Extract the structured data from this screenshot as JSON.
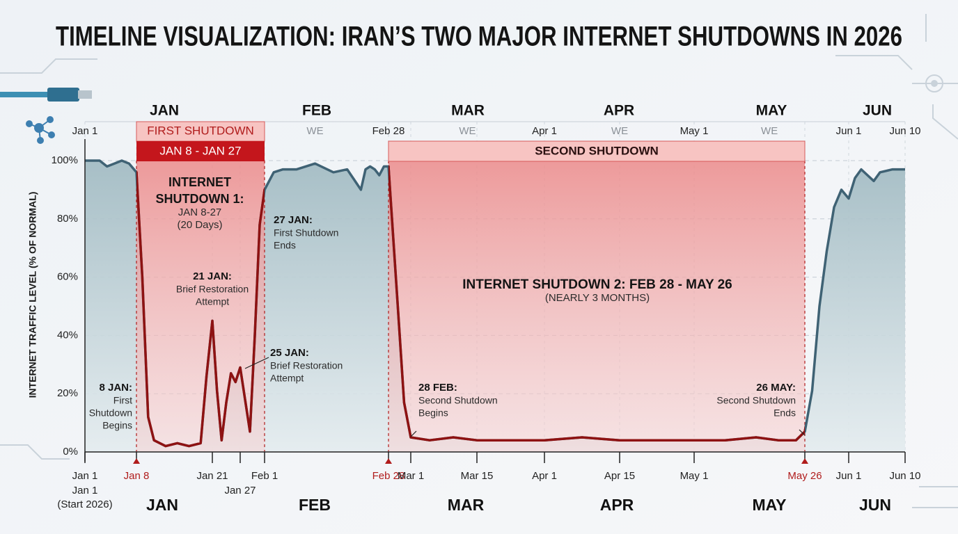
{
  "chart_data": {
    "type": "area-line",
    "title": "TIMELINE VISUALIZATION: IRAN’S TWO MAJOR INTERNET SHUTDOWNS IN 2026",
    "y_label": "INTERNET TRAFFIC LEVEL (% OF NORMAL)",
    "ylim": [
      0,
      100
    ],
    "yticks": [
      {
        "value": 0,
        "label": "0%"
      },
      {
        "value": 20,
        "label": "20%"
      },
      {
        "value": 40,
        "label": "40%"
      },
      {
        "value": 60,
        "label": "60%"
      },
      {
        "value": 80,
        "label": "80%"
      },
      {
        "value": 100,
        "label": "100%"
      }
    ],
    "xlim": [
      1,
      161
    ],
    "xticks": [
      {
        "value": 1,
        "label": "Jan 1"
      },
      {
        "value": 8,
        "label": "Jan 8"
      },
      {
        "value": 21,
        "label": "Jan 21"
      },
      {
        "value": 27,
        "label": "Jan 27"
      },
      {
        "value": 32,
        "label": "Feb 1"
      },
      {
        "value": 59,
        "label": "Feb 28"
      },
      {
        "value": 60,
        "label": "Mar 1"
      },
      {
        "value": 74,
        "label": "Mar 15"
      },
      {
        "value": 91,
        "label": "Apr 1"
      },
      {
        "value": 105,
        "label": "Apr 15"
      },
      {
        "value": 121,
        "label": "May 1"
      },
      {
        "value": 146,
        "label": "May 26"
      },
      {
        "value": 152,
        "label": "Jun 1"
      },
      {
        "value": 161,
        "label": "Jun 10"
      }
    ],
    "x_note": [
      "Jan 1",
      "(Start 2026)"
    ],
    "top_axis": [
      {
        "value": 1,
        "label": "Jan 1"
      },
      {
        "value": 43,
        "label": "WE"
      },
      {
        "value": 59,
        "label": "Feb 28"
      },
      {
        "value": 72,
        "label": "WE"
      },
      {
        "value": 91,
        "label": "Apr 1"
      },
      {
        "value": 105,
        "label": "WE"
      },
      {
        "value": 121,
        "label": "May 1"
      },
      {
        "value": 138,
        "label": "WE"
      },
      {
        "value": 152,
        "label": "Jun 1"
      },
      {
        "value": 161,
        "label": "Jun 10"
      }
    ],
    "months": [
      "JAN",
      "FEB",
      "MAR",
      "APR",
      "MAY",
      "JUN"
    ],
    "grid": true,
    "series": [
      {
        "color": "#3f6274",
        "shutdown_color": "#8e1212",
        "x": [
          1,
          3,
          4,
          5,
          6,
          7,
          8,
          9,
          10,
          11,
          13,
          15,
          17,
          19,
          20,
          21,
          22,
          23,
          24,
          25,
          26,
          27,
          28,
          29,
          30,
          31,
          32,
          34,
          36,
          39,
          43,
          47,
          50,
          53,
          54,
          55,
          56,
          57,
          58,
          59,
          59.4,
          59.7,
          60,
          64,
          69,
          74,
          82,
          91,
          98,
          105,
          113,
          121,
          128,
          135,
          140,
          144,
          146,
          147,
          148,
          149,
          150,
          151,
          152,
          153,
          154,
          155,
          156,
          157,
          159,
          161
        ],
        "values": [
          100,
          100,
          98,
          99,
          100,
          99,
          96,
          60,
          12,
          4,
          2,
          3,
          2,
          3,
          26,
          45,
          21,
          4,
          17,
          27,
          24,
          29,
          18,
          7,
          40,
          78,
          90,
          96,
          97,
          97,
          99,
          96,
          97,
          90,
          97,
          98,
          97,
          95,
          98,
          98,
          52,
          17,
          5,
          4,
          5,
          4,
          4,
          4,
          5,
          4,
          4,
          4,
          4,
          5,
          4,
          4,
          7,
          21,
          50,
          69,
          84,
          90,
          87,
          94,
          97,
          95,
          93,
          96,
          97,
          97
        ]
      }
    ],
    "shutdowns": [
      {
        "name": "FIRST SHUTDOWN",
        "dates": "JAN 8 - JAN 27",
        "start": 8,
        "end": 32
      },
      {
        "name": "SECOND SHUTDOWN",
        "start": 59,
        "end": 146
      }
    ],
    "annotations": [
      {
        "title": [
          "INTERNET",
          "SHUTDOWN 1:"
        ],
        "body": [
          "JAN 8-27",
          "(20 Days)"
        ]
      },
      {
        "title": [
          "21 JAN:"
        ],
        "body": [
          "Brief Restoration",
          "Attempt"
        ]
      },
      {
        "title": [
          "27 JAN:"
        ],
        "body": [
          "First Shutdown",
          "Ends"
        ]
      },
      {
        "title": [
          "25 JAN:"
        ],
        "body": [
          "Brief Restoration",
          "Attempt"
        ]
      },
      {
        "title": [
          "8 JAN:"
        ],
        "body": [
          "First",
          "Shutdown",
          "Begins"
        ]
      },
      {
        "title": [
          "INTERNET SHUTDOWN 2: FEB 28 - MAY 26"
        ],
        "body": [
          "(NEARLY 3 MONTHS)"
        ]
      },
      {
        "title": [
          "28 FEB:"
        ],
        "body": [
          "Second Shutdown",
          "Begins"
        ]
      },
      {
        "title": [
          "26 MAY:"
        ],
        "body": [
          "Second Shutdown",
          "Ends"
        ]
      }
    ]
  }
}
